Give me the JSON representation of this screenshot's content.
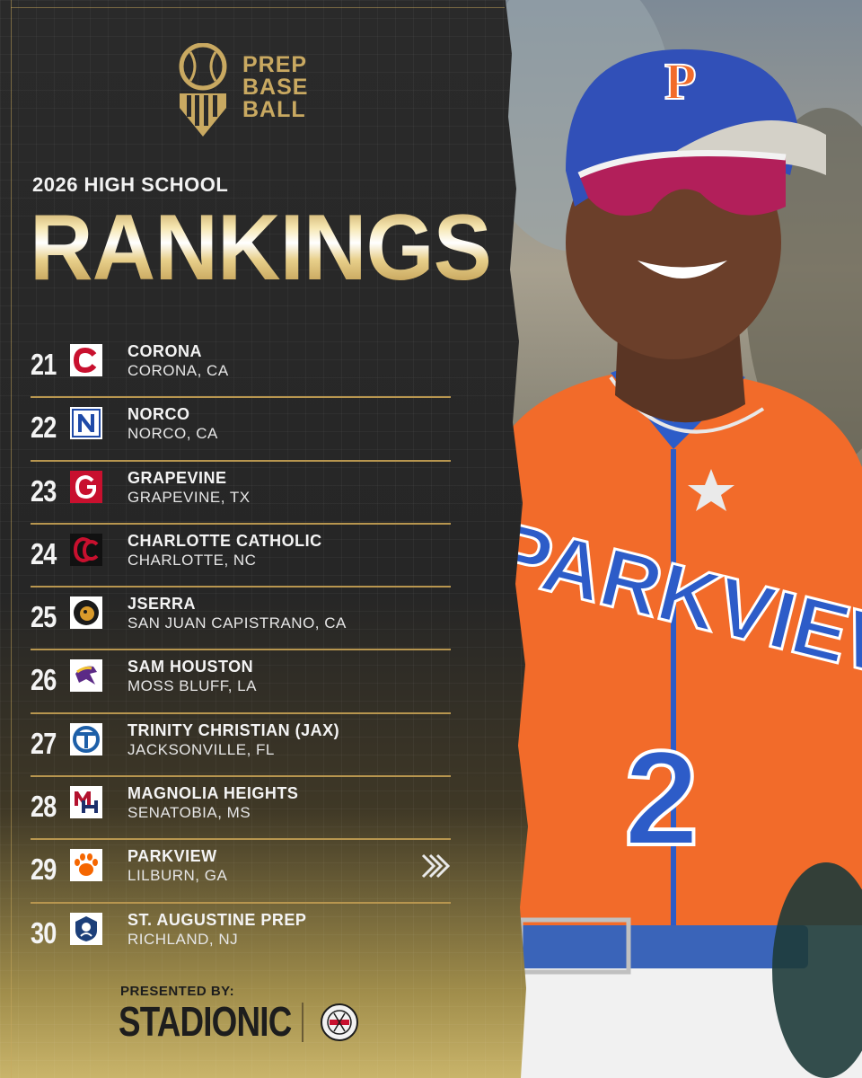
{
  "brand": {
    "logo_lines": [
      "PREP",
      "BASE",
      "BALL"
    ]
  },
  "subtitle": "2026 HIGH SCHOOL",
  "headline": "RANKINGS",
  "rankings": [
    {
      "rank": "21",
      "school": "CORONA",
      "location": "CORONA, CA",
      "logo_icon": "corona-c-icon"
    },
    {
      "rank": "22",
      "school": "NORCO",
      "location": "NORCO, CA",
      "logo_icon": "norco-n-icon"
    },
    {
      "rank": "23",
      "school": "GRAPEVINE",
      "location": "GRAPEVINE, TX",
      "logo_icon": "grapevine-g-icon"
    },
    {
      "rank": "24",
      "school": "CHARLOTTE CATHOLIC",
      "location": "CHARLOTTE, NC",
      "logo_icon": "cc-icon"
    },
    {
      "rank": "25",
      "school": "JSERRA",
      "location": "SAN JUAN CAPISTRANO, CA",
      "logo_icon": "lion-icon"
    },
    {
      "rank": "26",
      "school": "SAM HOUSTON",
      "location": "MOSS BLUFF, LA",
      "logo_icon": "bronco-icon"
    },
    {
      "rank": "27",
      "school": "TRINITY CHRISTIAN (JAX)",
      "location": "JACKSONVILLE, FL",
      "logo_icon": "tc-icon"
    },
    {
      "rank": "28",
      "school": "MAGNOLIA HEIGHTS",
      "location": "SENATOBIA, MS",
      "logo_icon": "mh-icon"
    },
    {
      "rank": "29",
      "school": "PARKVIEW",
      "location": "LILBURN, GA",
      "logo_icon": "paw-icon",
      "highlight": true
    },
    {
      "rank": "30",
      "school": "ST. AUGUSTINE PREP",
      "location": "RICHLAND, NJ",
      "logo_icon": "hermit-icon"
    }
  ],
  "footer": {
    "presented_by": "PRESENTED BY:",
    "sponsor": "STADIONIC",
    "partner_logo_icon": "netting-seal-icon"
  },
  "photo": {
    "cap_letter": "P",
    "jersey_text": "PARKVIEW",
    "jersey_number": "2"
  },
  "colors": {
    "gold": "#c9a961",
    "jersey_orange": "#f26b2a",
    "jersey_blue": "#2d5cc8"
  }
}
